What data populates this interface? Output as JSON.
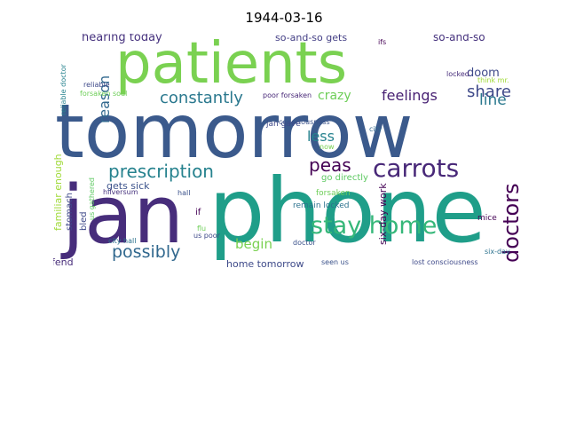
{
  "title": "1944-03-16",
  "words": [
    {
      "text": "tomorrow",
      "color": "#3b5a8c"
    },
    {
      "text": "phone",
      "color": "#1f9e89"
    },
    {
      "text": "patients",
      "color": "#7ad151"
    },
    {
      "text": "jan",
      "color": "#472d7b"
    },
    {
      "text": "carrots",
      "color": "#482878"
    },
    {
      "text": "stay home",
      "color": "#35b779"
    },
    {
      "text": "prescription",
      "color": "#26828e"
    },
    {
      "text": "possibly",
      "color": "#31688e"
    },
    {
      "text": "doctors",
      "color": "#440154"
    },
    {
      "text": "constantly",
      "color": "#2a788e"
    },
    {
      "text": "peas",
      "color": "#440154"
    },
    {
      "text": "feelings",
      "color": "#482173"
    },
    {
      "text": "reason",
      "color": "#31688e"
    },
    {
      "text": "share",
      "color": "#3e4989"
    },
    {
      "text": "line",
      "color": "#2a788e"
    },
    {
      "text": "doom",
      "color": "#3e4989"
    },
    {
      "text": "crazy",
      "color": "#6ece58"
    },
    {
      "text": "less",
      "color": "#26828e"
    },
    {
      "text": "hearing today",
      "color": "#46327e"
    },
    {
      "text": "so-and-so gets",
      "color": "#433e85"
    },
    {
      "text": "so-and-so",
      "color": "#46327e"
    },
    {
      "text": "begin",
      "color": "#7ad151"
    },
    {
      "text": "gets sick",
      "color": "#3b528b"
    },
    {
      "text": "home tomorrow",
      "color": "#3e4a89"
    },
    {
      "text": "six-day work",
      "color": "#440154"
    },
    {
      "text": "familiar enough",
      "color": "#a0da39"
    },
    {
      "text": "stomach",
      "color": "#3e4989"
    },
    {
      "text": "fend",
      "color": "#472c7a"
    },
    {
      "text": "city hall",
      "color": "#2c728e"
    },
    {
      "text": "forsaken",
      "color": "#6ece58"
    },
    {
      "text": "constantly",
      "color": "#2a788e"
    },
    {
      "text": "consciousness",
      "color": "#3b528b"
    },
    {
      "text": "lost consciousness",
      "color": "#3e4989"
    },
    {
      "text": "seen us",
      "color": "#3b528b"
    },
    {
      "text": "remain locked",
      "color": "#2c728e"
    },
    {
      "text": "go directly",
      "color": "#5ec962"
    },
    {
      "text": "diagnosis",
      "color": "#482878"
    },
    {
      "text": "jan gave",
      "color": "#3e4989"
    },
    {
      "text": "mice",
      "color": "#440154"
    },
    {
      "text": "doctor",
      "color": "#3b528b"
    },
    {
      "text": "six-day",
      "color": "#2c728e"
    },
    {
      "text": "locked",
      "color": "#472d7b"
    },
    {
      "text": "think mr.",
      "color": "#a0da39"
    },
    {
      "text": "city",
      "color": "#31688e"
    },
    {
      "text": "ifs",
      "color": "#440154"
    },
    {
      "text": "reliable doctor",
      "color": "#26828e"
    },
    {
      "text": "reliable",
      "color": "#3e4989"
    },
    {
      "text": "forsaken soul",
      "color": "#6ece58"
    },
    {
      "text": "poor forsaken",
      "color": "#482878"
    },
    {
      "text": "hilversum",
      "color": "#46327e"
    },
    {
      "text": "hall",
      "color": "#3b528b"
    },
    {
      "text": "flu",
      "color": "#6ece58"
    },
    {
      "text": "us poor",
      "color": "#3e4989"
    },
    {
      "text": "bled",
      "color": "#3e4989"
    },
    {
      "text": "us gathered",
      "color": "#5ec962"
    },
    {
      "text": "if",
      "color": "#440154"
    },
    {
      "text": "now",
      "color": "#7ad151"
    },
    {
      "text": "yesterday jan",
      "color": "#26828e"
    }
  ]
}
